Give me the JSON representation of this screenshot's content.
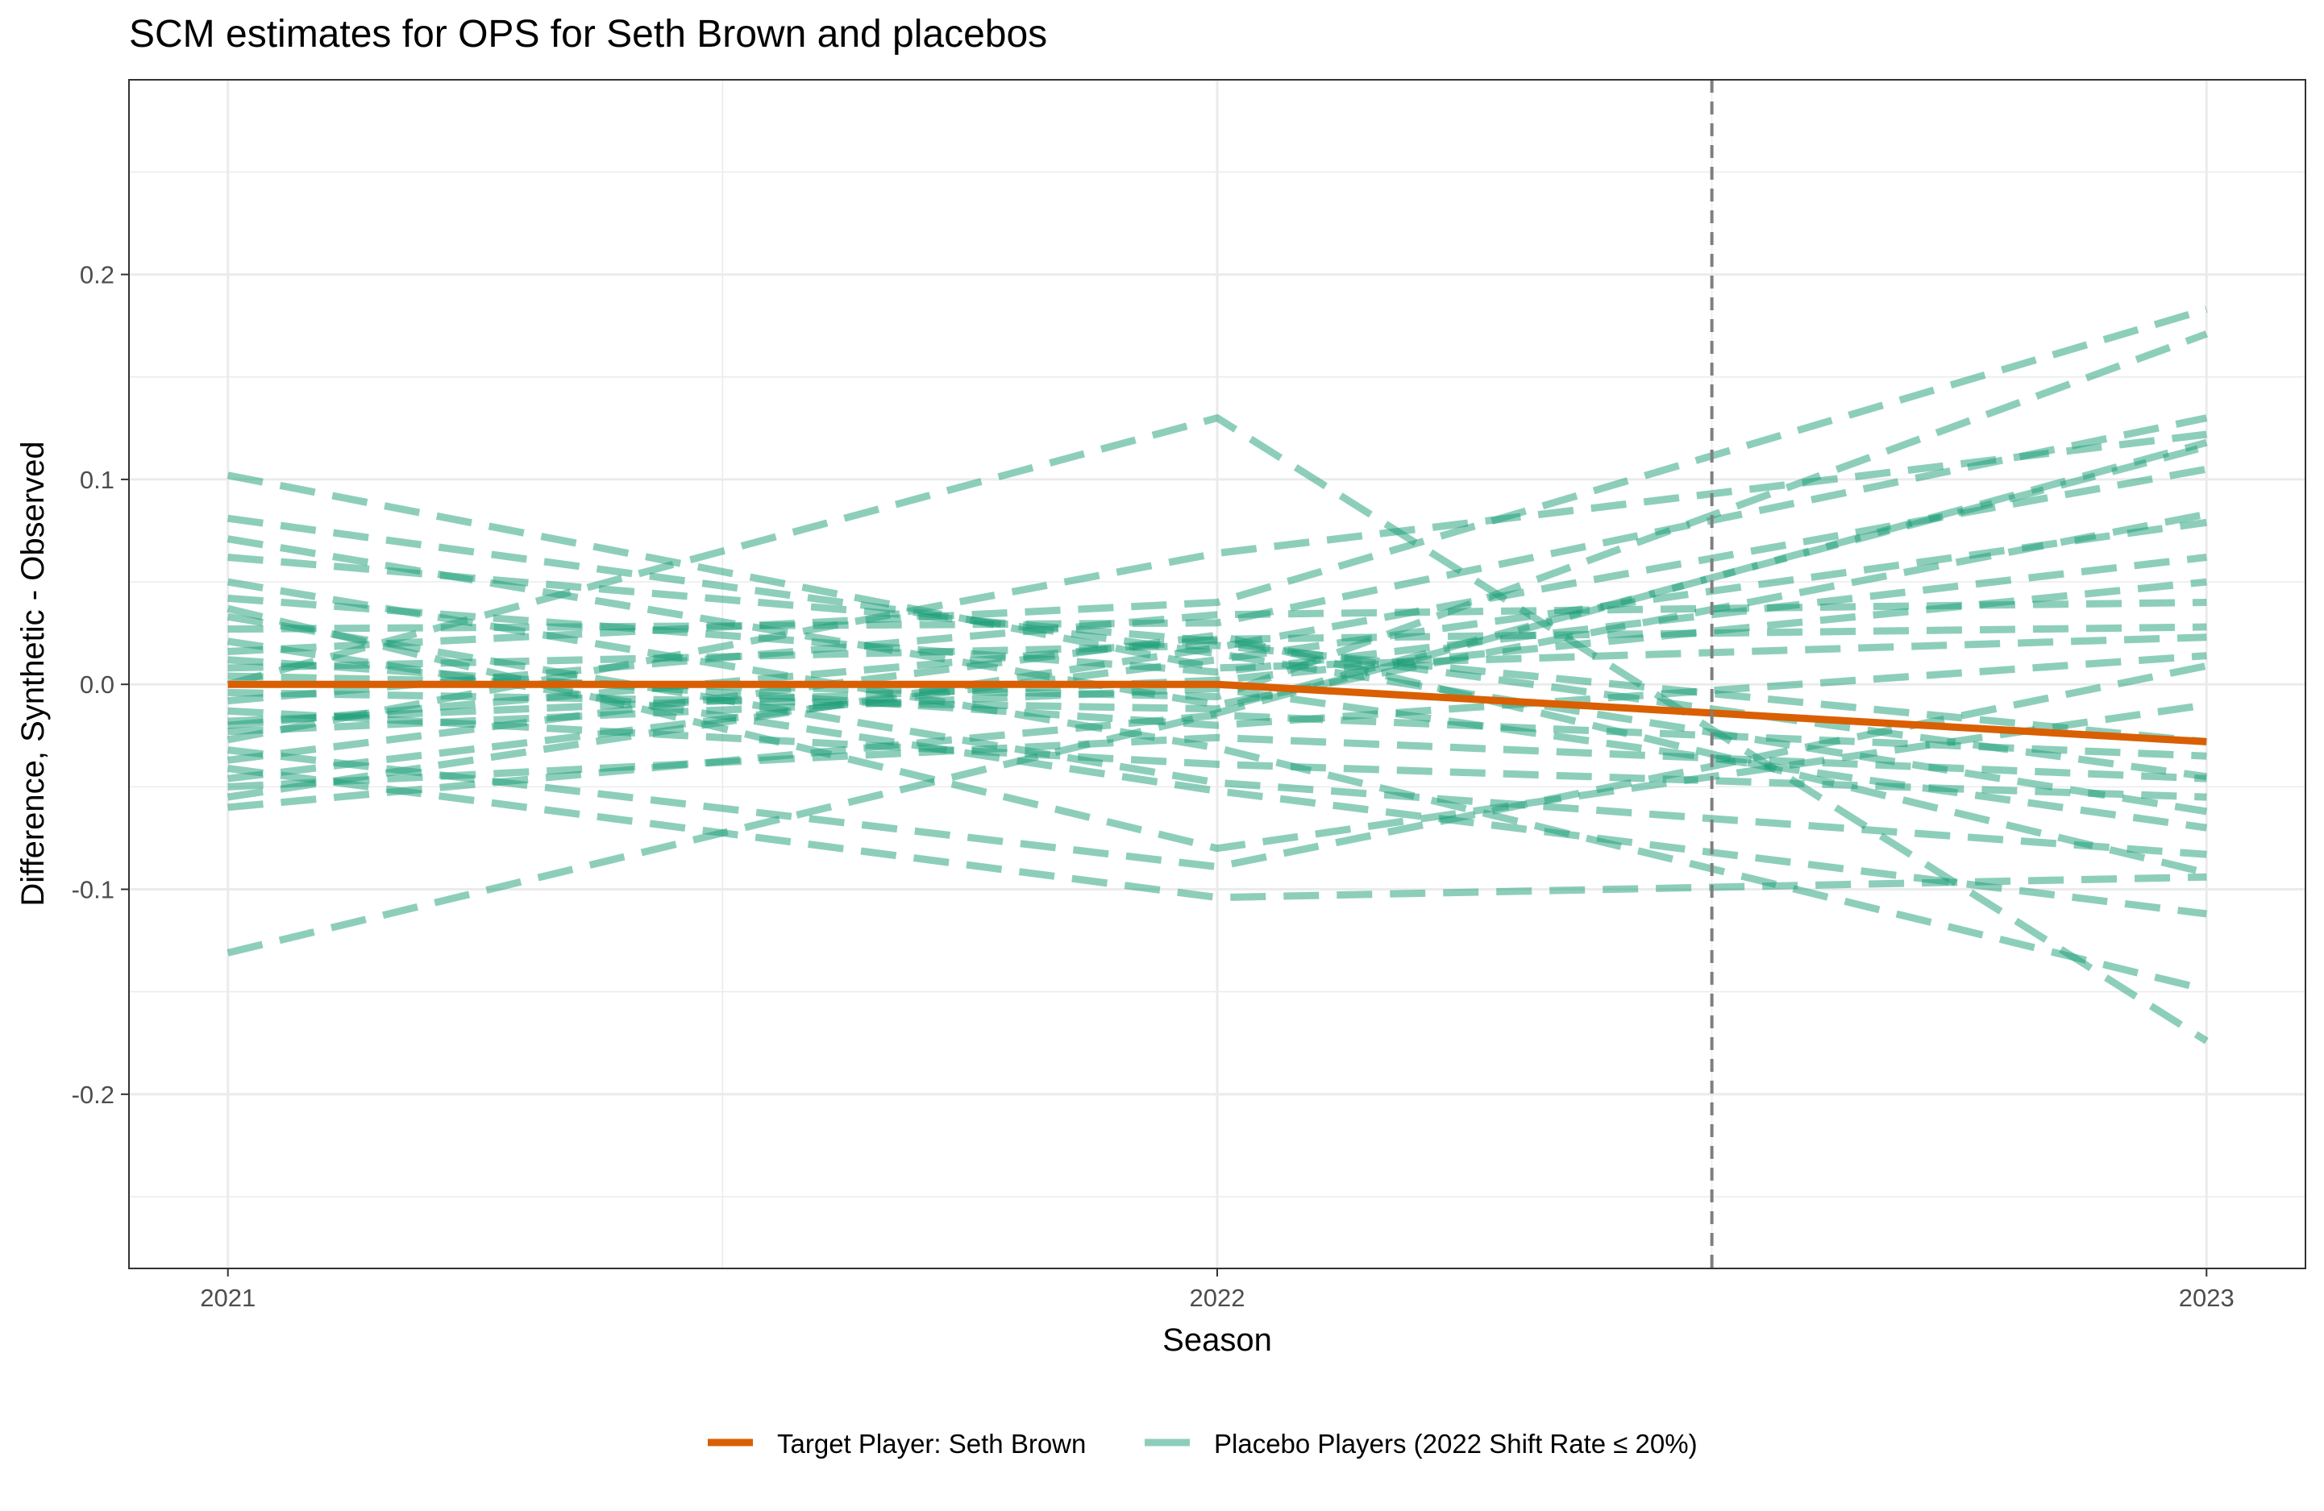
{
  "chart_data": {
    "type": "line",
    "title": "SCM estimates for OPS for Seth Brown and placebos",
    "xlabel": "Season",
    "ylabel": "Difference, Synthetic - Observed",
    "xlim": [
      2020.9,
      2023.1
    ],
    "ylim": [
      -0.285,
      0.295
    ],
    "x_ticks": [
      2021,
      2022,
      2023
    ],
    "x_tick_labels": [
      "2021",
      "2022",
      "2023"
    ],
    "y_ticks": [
      -0.2,
      -0.1,
      0.0,
      0.1,
      0.2
    ],
    "y_tick_labels": [
      "-0.2",
      "-0.1",
      "0.0",
      "0.1",
      "0.2"
    ],
    "grid": true,
    "vline": {
      "x": 2022.5,
      "style": "dashed",
      "color": "#7f7f7f"
    },
    "legend": {
      "position": "bottom",
      "entries": [
        {
          "label": "Target Player: Seth Brown",
          "color": "#d95f02",
          "style": "solid"
        },
        {
          "label": "Placebo Players (2022 Shift Rate ≤ 20%)",
          "color": "#1b9e77",
          "style": "dashed"
        }
      ]
    },
    "x": [
      2021,
      2022,
      2023
    ],
    "series": [
      {
        "name": "Target Player: Seth Brown",
        "group": "target",
        "color": "#d95f02",
        "values": [
          0.0,
          0.0,
          -0.028
        ]
      },
      {
        "group": "placebo",
        "color": "#1b9e77",
        "values": [
          0.102,
          0.008,
          0.023
        ]
      },
      {
        "group": "placebo",
        "color": "#1b9e77",
        "values": [
          0.081,
          0.015,
          -0.062
        ]
      },
      {
        "group": "placebo",
        "color": "#1b9e77",
        "values": [
          0.071,
          -0.01,
          0.083
        ]
      },
      {
        "group": "placebo",
        "color": "#1b9e77",
        "values": [
          0.062,
          0.021,
          -0.045
        ]
      },
      {
        "group": "placebo",
        "color": "#1b9e77",
        "values": [
          0.05,
          -0.031,
          -0.149
        ]
      },
      {
        "group": "placebo",
        "color": "#1b9e77",
        "values": [
          0.042,
          0.006,
          0.062
        ]
      },
      {
        "group": "placebo",
        "color": "#1b9e77",
        "values": [
          0.033,
          -0.048,
          -0.083
        ]
      },
      {
        "group": "placebo",
        "color": "#1b9e77",
        "values": [
          0.027,
          0.03,
          0.13
        ]
      },
      {
        "group": "placebo",
        "color": "#1b9e77",
        "values": [
          0.021,
          -0.052,
          -0.112
        ]
      },
      {
        "group": "placebo",
        "color": "#1b9e77",
        "values": [
          0.016,
          0.04,
          0.183
        ]
      },
      {
        "group": "placebo",
        "color": "#1b9e77",
        "values": [
          0.012,
          -0.02,
          0.014
        ]
      },
      {
        "group": "placebo",
        "color": "#1b9e77",
        "values": [
          0.008,
          0.019,
          -0.028
        ]
      },
      {
        "group": "placebo",
        "color": "#1b9e77",
        "values": [
          0.004,
          -0.006,
          0.171
        ]
      },
      {
        "group": "placebo",
        "color": "#1b9e77",
        "values": [
          0.0,
          0.13,
          -0.174
        ]
      },
      {
        "group": "placebo",
        "color": "#1b9e77",
        "values": [
          -0.004,
          -0.012,
          0.116
        ]
      },
      {
        "group": "placebo",
        "color": "#1b9e77",
        "values": [
          -0.008,
          0.034,
          0.04
        ]
      },
      {
        "group": "placebo",
        "color": "#1b9e77",
        "values": [
          -0.013,
          -0.039,
          -0.055
        ]
      },
      {
        "group": "placebo",
        "color": "#1b9e77",
        "values": [
          -0.018,
          0.002,
          0.05
        ]
      },
      {
        "group": "placebo",
        "color": "#1b9e77",
        "values": [
          -0.023,
          -0.002,
          -0.07
        ]
      },
      {
        "group": "placebo",
        "color": "#1b9e77",
        "values": [
          -0.027,
          0.064,
          0.122
        ]
      },
      {
        "group": "placebo",
        "color": "#1b9e77",
        "values": [
          -0.032,
          -0.089,
          0.009
        ]
      },
      {
        "group": "placebo",
        "color": "#1b9e77",
        "values": [
          -0.037,
          0.024,
          -0.092
        ]
      },
      {
        "group": "placebo",
        "color": "#1b9e77",
        "values": [
          -0.041,
          -0.104,
          -0.094
        ]
      },
      {
        "group": "placebo",
        "color": "#1b9e77",
        "values": [
          -0.046,
          0.012,
          0.079
        ]
      },
      {
        "group": "placebo",
        "color": "#1b9e77",
        "values": [
          -0.05,
          -0.026,
          -0.046
        ]
      },
      {
        "group": "placebo",
        "color": "#1b9e77",
        "values": [
          -0.055,
          0.018,
          0.105
        ]
      },
      {
        "group": "placebo",
        "color": "#1b9e77",
        "values": [
          -0.06,
          -0.015,
          -0.035
        ]
      },
      {
        "group": "placebo",
        "color": "#1b9e77",
        "values": [
          -0.131,
          -0.014,
          0.118
        ]
      },
      {
        "group": "placebo",
        "color": "#1b9e77",
        "values": [
          0.037,
          -0.08,
          -0.01
        ]
      },
      {
        "group": "placebo",
        "color": "#1b9e77",
        "values": [
          -0.02,
          0.022,
          0.028
        ]
      }
    ]
  }
}
